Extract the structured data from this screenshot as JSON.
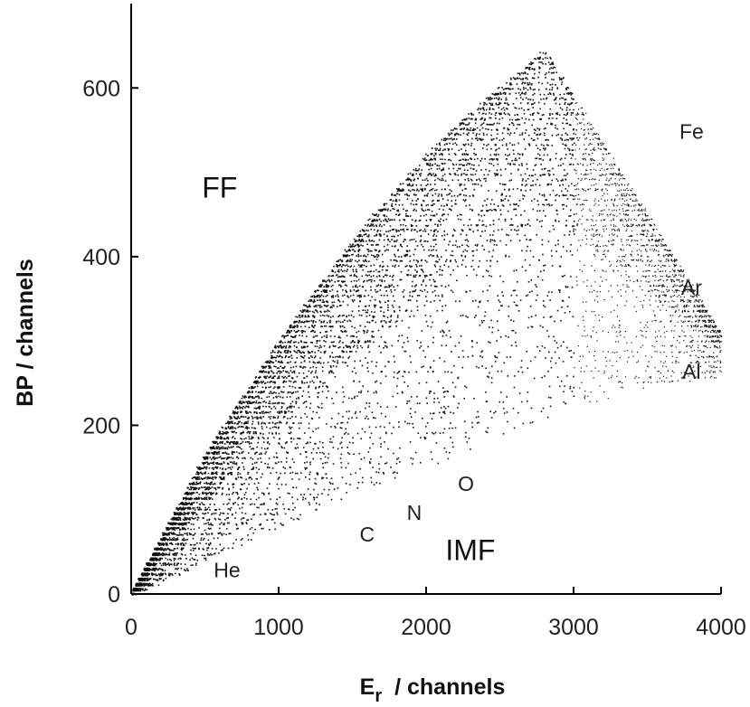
{
  "chart_data": {
    "type": "scatter",
    "title": "",
    "xlabel": "E",
    "xlabel_subscript": "r",
    "xlabel_rest": "/  channels",
    "ylabel": "BP / channels",
    "xlim": [
      0,
      4000
    ],
    "ylim": [
      0,
      700
    ],
    "xticks": [
      0,
      1000,
      2000,
      3000,
      4000
    ],
    "yticks": [
      0,
      200,
      400,
      600
    ],
    "xtick_labels": [
      "0",
      "1000",
      "2000",
      "3000",
      "4000"
    ],
    "ytick_labels": [
      "0",
      "200",
      "400",
      "600"
    ],
    "grid": false,
    "legend": "none",
    "point_color": "#111111",
    "regions": [
      {
        "label": "FF",
        "x": 600,
        "y": 470,
        "size": "large"
      },
      {
        "label": "IMF",
        "x": 2300,
        "y": 40,
        "size": "large"
      }
    ],
    "element_labels": [
      {
        "label": "He",
        "x": 650,
        "y": 20
      },
      {
        "label": "C",
        "x": 1600,
        "y": 62
      },
      {
        "label": "N",
        "x": 1920,
        "y": 88
      },
      {
        "label": "O",
        "x": 2270,
        "y": 122
      },
      {
        "label": "Al",
        "x": 3800,
        "y": 255
      },
      {
        "label": "Ar",
        "x": 3800,
        "y": 355
      },
      {
        "label": "Fe",
        "x": 3800,
        "y": 540
      }
    ],
    "envelope": {
      "upper_x": [
        0,
        500,
        1000,
        1500,
        2000,
        2200,
        2500,
        2800
      ],
      "upper_y": [
        0,
        165,
        300,
        420,
        520,
        555,
        600,
        645
      ],
      "lower_x": [
        0,
        500,
        1000,
        1500,
        2000,
        2500,
        3000,
        3500,
        4000
      ],
      "lower_y": [
        0,
        40,
        80,
        115,
        150,
        190,
        220,
        245,
        260
      ],
      "right_edge_x": 4000
    },
    "n_points": 9000
  }
}
